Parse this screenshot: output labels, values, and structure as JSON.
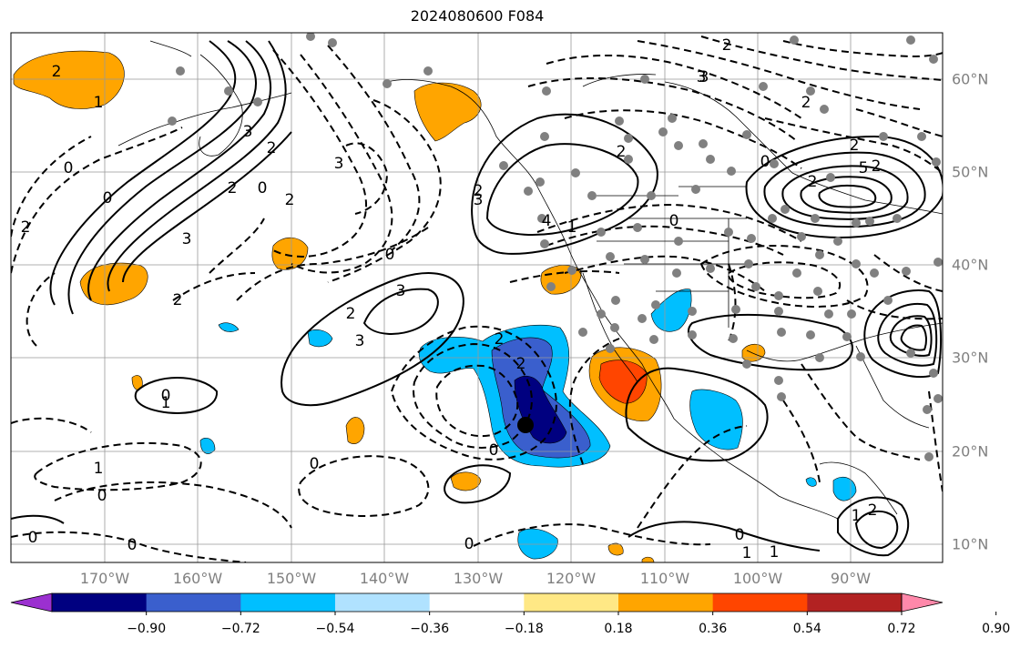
{
  "title": "2024080600 F084",
  "lon_labels": [
    "170°W",
    "160°W",
    "150°W",
    "140°W",
    "130°W",
    "120°W",
    "110°W",
    "100°W",
    "90°W"
  ],
  "lat_labels": [
    "60°N",
    "50°N",
    "40°N",
    "30°N",
    "20°N",
    "10°N"
  ],
  "colorbar": {
    "tick_labels": [
      "−0.90",
      "−0.72",
      "−0.54",
      "−0.36",
      "−0.18",
      "0.18",
      "0.36",
      "0.54",
      "0.72",
      "0.90"
    ],
    "colors": [
      "#9b30d0",
      "#000080",
      "#3a5fcd",
      "#00bfff",
      "#b0e2ff",
      "#ffffff",
      "#ffe885",
      "#ffa500",
      "#ff4500",
      "#b22222",
      "#ff88aa"
    ]
  },
  "contour_labels": [
    "2",
    "1",
    "0",
    "0",
    "2",
    "3",
    "3",
    "3",
    "2",
    "2",
    "0",
    "3",
    "3",
    "0",
    "2",
    "1",
    "2",
    "2",
    "0",
    "1",
    "0",
    "2",
    "0",
    "2",
    "0",
    "3",
    "2",
    "2",
    "3",
    "5",
    "2",
    "2",
    "1",
    "0",
    "0",
    "1",
    "0",
    "0",
    "0",
    "1",
    "1",
    "2",
    "0",
    "2",
    "2",
    "2",
    "4",
    "3"
  ],
  "marker_colors": {
    "station": "#808080",
    "center": "#000000"
  }
}
